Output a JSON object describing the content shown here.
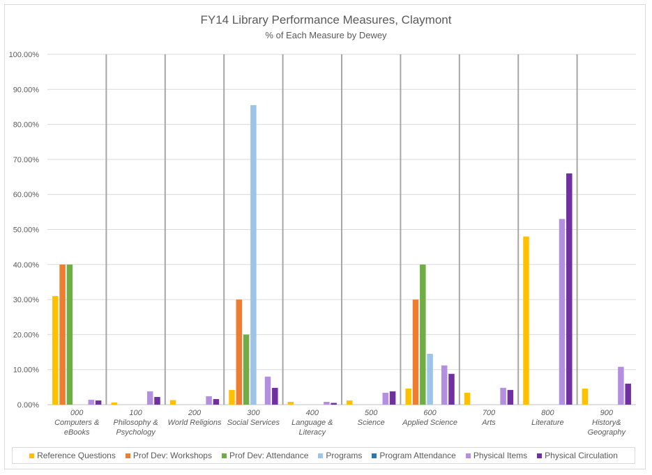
{
  "chart_data": {
    "type": "bar",
    "title": "FY14 Library Performance Measures, Claymont",
    "subtitle": "% of Each Measure by Dewey",
    "ylim": [
      0,
      100
    ],
    "yticks": [
      "0.00%",
      "10.00%",
      "20.00%",
      "30.00%",
      "40.00%",
      "50.00%",
      "60.00%",
      "70.00%",
      "80.00%",
      "90.00%",
      "100.00%"
    ],
    "categories": [
      [
        "000",
        "Computers &",
        "eBooks"
      ],
      [
        "100",
        "Philosophy &",
        "Psychology"
      ],
      [
        "200",
        "World Religions"
      ],
      [
        "300",
        "Social Services"
      ],
      [
        "400",
        "Language &",
        "Literacy"
      ],
      [
        "500",
        "Science"
      ],
      [
        "600",
        "Applied Science"
      ],
      [
        "700",
        "Arts"
      ],
      [
        "800",
        "Literature"
      ],
      [
        "900",
        "History&",
        "Geography"
      ]
    ],
    "series": [
      {
        "name": "Reference Questions",
        "color": "#FFC000",
        "values": [
          31,
          0.6,
          1.3,
          4.2,
          0.8,
          1.2,
          4.6,
          3.4,
          48,
          4.6
        ]
      },
      {
        "name": "Prof Dev: Workshops",
        "color": "#ED7D31",
        "values": [
          40,
          0,
          0,
          30,
          0,
          0,
          30,
          0,
          0,
          0
        ]
      },
      {
        "name": "Prof Dev: Attendance",
        "color": "#70AD47",
        "values": [
          40,
          0,
          0,
          20,
          0,
          0,
          40,
          0,
          0,
          0
        ]
      },
      {
        "name": "Programs",
        "color": "#9DC3E6",
        "values": [
          0,
          0,
          0,
          85.5,
          0,
          0,
          14.5,
          0,
          0,
          0
        ]
      },
      {
        "name": "Program Attendance",
        "color": "#2E75B6",
        "values": [
          0,
          0,
          0,
          0,
          0,
          0,
          0,
          0,
          0,
          0
        ]
      },
      {
        "name": "Physical Items",
        "color": "#B48FE0",
        "values": [
          1.4,
          3.8,
          2.4,
          8,
          0.8,
          3.4,
          11.2,
          4.8,
          53,
          10.8
        ]
      },
      {
        "name": "Physical Circulation",
        "color": "#7030A0",
        "values": [
          1.2,
          2.2,
          1.6,
          4.8,
          0.5,
          3.8,
          8.8,
          4.2,
          66,
          6
        ]
      }
    ],
    "grid": true,
    "legend_position": "bottom"
  }
}
